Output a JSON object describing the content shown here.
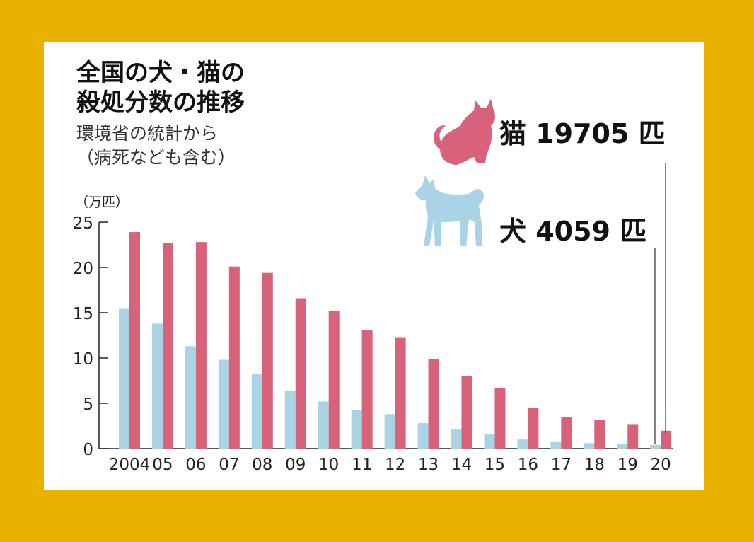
{
  "title_lines": [
    "全国の犬・猫の",
    "殺処分数の推移"
  ],
  "subtitle_lines": [
    "環境省の統計から",
    "（病死なども含む）"
  ],
  "colors": {
    "background": "#e9b100",
    "panel": "#ffffff",
    "cat": "#d9627b",
    "dog": "#a9d4e6"
  },
  "icons": {
    "cat": "cat-silhouette-icon",
    "dog": "dog-silhouette-icon"
  },
  "callouts": {
    "cat": "猫 19705 匹",
    "dog": "犬 4059 匹"
  },
  "chart_data": {
    "type": "bar",
    "y_unit": "（万匹）",
    "ylim": [
      0,
      25
    ],
    "yticks": [
      0,
      5,
      10,
      15,
      20,
      25
    ],
    "categories": [
      "2004",
      "05",
      "06",
      "07",
      "08",
      "09",
      "10",
      "11",
      "12",
      "13",
      "14",
      "15",
      "16",
      "17",
      "18",
      "19",
      "20"
    ],
    "series": [
      {
        "name": "犬",
        "key": "dog",
        "values": [
          15.5,
          13.8,
          11.3,
          9.8,
          8.2,
          6.4,
          5.2,
          4.3,
          3.8,
          2.8,
          2.1,
          1.6,
          1.0,
          0.8,
          0.6,
          0.5,
          0.4059
        ]
      },
      {
        "name": "猫",
        "key": "cat",
        "values": [
          23.9,
          22.7,
          22.8,
          20.1,
          19.4,
          16.6,
          15.2,
          13.1,
          12.3,
          9.9,
          8.0,
          6.7,
          4.5,
          3.5,
          3.2,
          2.7,
          1.9705
        ]
      }
    ],
    "grid": false,
    "legend": "none"
  }
}
